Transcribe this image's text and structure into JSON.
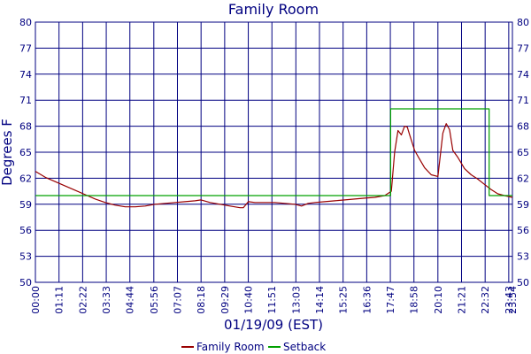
{
  "chart_data": {
    "type": "line",
    "title": "Family Room",
    "xlabel": "01/19/09 (EST)",
    "ylabel": "Degrees F",
    "ylim": [
      50,
      80
    ],
    "xlim": [
      "00:00",
      "23:54"
    ],
    "y_ticks": [
      "50",
      "53",
      "56",
      "59",
      "62",
      "65",
      "68",
      "71",
      "74",
      "77",
      "80"
    ],
    "x_ticks": [
      "00:00",
      "01:11",
      "02:22",
      "03:33",
      "04:44",
      "05:56",
      "07:07",
      "08:18",
      "09:29",
      "10:40",
      "11:51",
      "13:03",
      "14:14",
      "15:25",
      "16:36",
      "17:47",
      "18:58",
      "20:10",
      "21:21",
      "22:32",
      "23:43",
      "23:54"
    ],
    "grid": true,
    "legend_position": "bottom",
    "series": [
      {
        "name": "Family Room",
        "color": "#990000",
        "x": [
          "00:00",
          "00:30",
          "01:00",
          "01:30",
          "02:00",
          "02:30",
          "03:00",
          "03:30",
          "04:00",
          "04:30",
          "05:00",
          "05:30",
          "06:00",
          "06:30",
          "07:00",
          "07:30",
          "08:00",
          "08:18",
          "08:45",
          "09:15",
          "09:45",
          "10:15",
          "10:25",
          "10:40",
          "11:00",
          "11:30",
          "12:00",
          "12:30",
          "13:00",
          "13:20",
          "13:40",
          "14:00",
          "14:30",
          "15:00",
          "15:30",
          "16:00",
          "16:30",
          "17:00",
          "17:30",
          "17:50",
          "18:00",
          "18:10",
          "18:20",
          "18:30",
          "18:38",
          "18:45",
          "19:00",
          "19:15",
          "19:30",
          "19:50",
          "20:10",
          "20:25",
          "20:35",
          "20:45",
          "20:55",
          "21:10",
          "21:30",
          "21:50",
          "22:10",
          "22:30",
          "22:50",
          "23:10",
          "23:30",
          "23:54"
        ],
        "values": [
          62.8,
          62.1,
          61.6,
          61.1,
          60.6,
          60.1,
          59.6,
          59.2,
          58.9,
          58.7,
          58.7,
          58.8,
          59.0,
          59.1,
          59.2,
          59.3,
          59.4,
          59.5,
          59.2,
          59.0,
          58.8,
          58.6,
          58.6,
          59.3,
          59.2,
          59.2,
          59.2,
          59.1,
          59.0,
          58.8,
          59.1,
          59.2,
          59.3,
          59.4,
          59.5,
          59.6,
          59.7,
          59.8,
          60.0,
          60.5,
          65.0,
          67.5,
          67.0,
          68.0,
          67.9,
          67.0,
          65.2,
          64.2,
          63.2,
          62.4,
          62.2,
          67.2,
          68.3,
          67.6,
          65.2,
          64.4,
          63.1,
          62.4,
          61.9,
          61.3,
          60.7,
          60.2,
          60.0,
          59.8
        ]
      },
      {
        "name": "Setback",
        "color": "#00a000",
        "x": [
          "00:00",
          "17:48",
          "17:48",
          "22:44",
          "22:44",
          "23:54"
        ],
        "values": [
          60,
          60,
          70,
          70,
          60,
          60
        ]
      }
    ]
  }
}
